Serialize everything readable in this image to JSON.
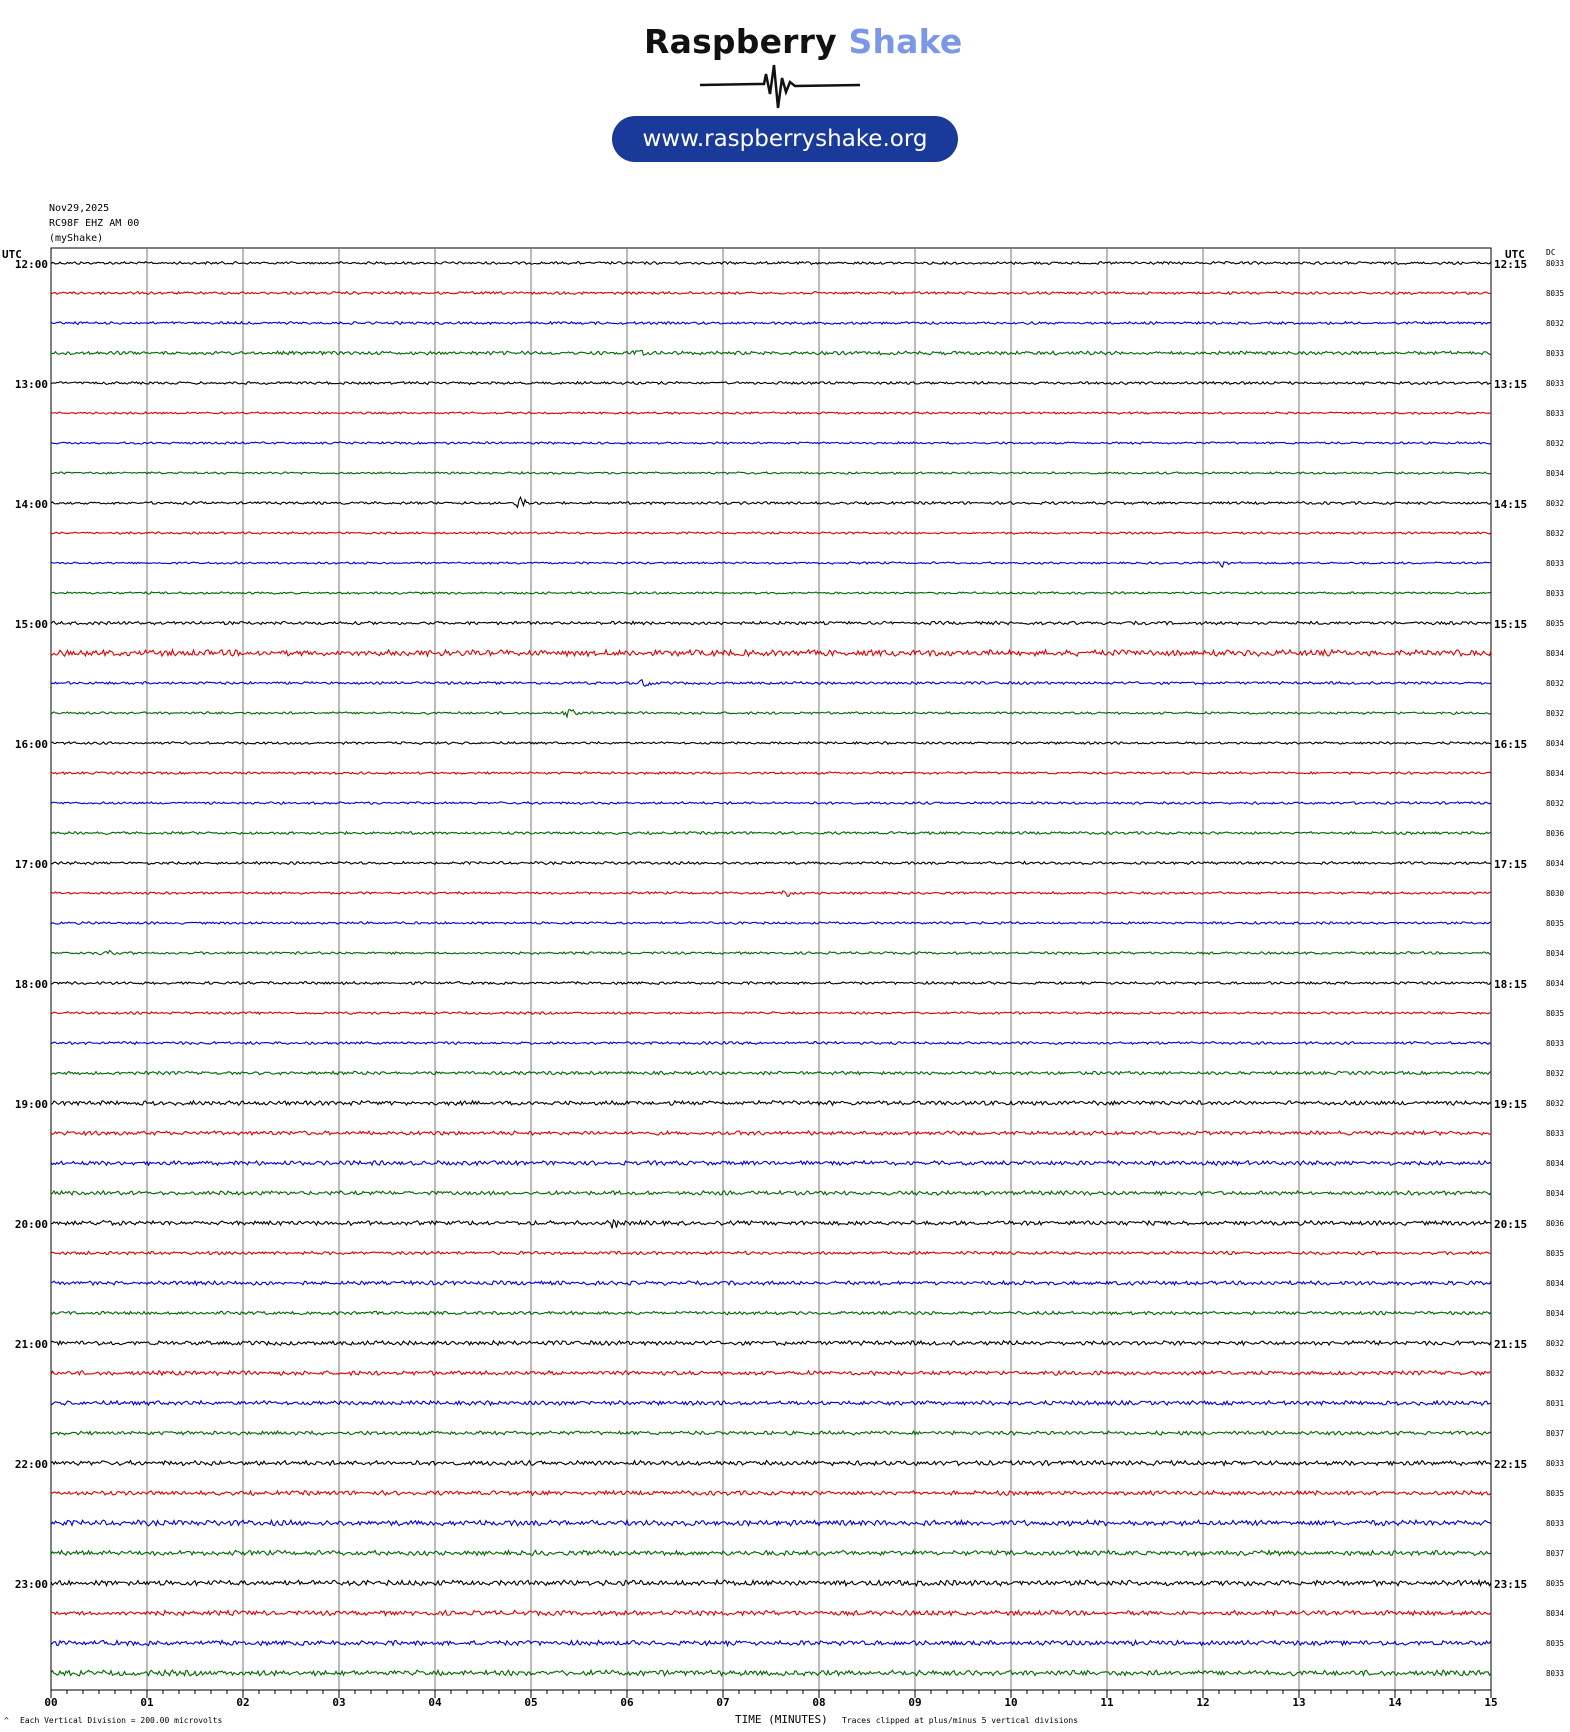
{
  "logo": {
    "brand_part1": "Raspberry",
    "brand_part2": "Shake",
    "url": "www.raspberryshake.org",
    "colors": {
      "dark": "#111111",
      "accent": "#7b98e6",
      "pill": "#1a3a99"
    }
  },
  "header": {
    "date": "Nov29,2025",
    "station": "RC98F EHZ AM 00",
    "source": "(myShake)"
  },
  "axes": {
    "left_title": "UTC",
    "right_title": "UTC",
    "dc_title": "DC",
    "left_hour_labels": [
      "12:00",
      "13:00",
      "14:00",
      "15:00",
      "16:00",
      "17:00",
      "18:00",
      "19:00",
      "20:00",
      "21:00",
      "22:00",
      "23:00"
    ],
    "right_hour_labels": [
      "12:15",
      "13:15",
      "14:15",
      "15:15",
      "16:15",
      "17:15",
      "18:15",
      "19:15",
      "20:15",
      "21:15",
      "22:15",
      "23:15"
    ],
    "x_ticks": [
      "00",
      "01",
      "02",
      "03",
      "04",
      "05",
      "06",
      "07",
      "08",
      "09",
      "10",
      "11",
      "12",
      "13",
      "14",
      "15"
    ],
    "x_title": "TIME (MINUTES)"
  },
  "footer": {
    "scale_note": "Each Vertical Division =  200.00 microvolts",
    "clip_note": "Traces clipped at plus/minus 5 vertical divisions"
  },
  "chart_data": {
    "type": "line",
    "subtype": "helicorder",
    "xlabel": "TIME (MINUTES)",
    "xlim": [
      0,
      15
    ],
    "trace_minutes": 15,
    "colors": [
      "#000000",
      "#dd0000",
      "#0000dd",
      "#006600"
    ],
    "dc_offsets": [
      "8033",
      "8035",
      "8032",
      "8033",
      "8033",
      "8033",
      "8032",
      "8034",
      "8032",
      "8032",
      "8033",
      "8033",
      "8035",
      "8034",
      "8032",
      "8032",
      "8034",
      "8034",
      "8032",
      "8036",
      "8034",
      "8030",
      "8035",
      "8034",
      "8034",
      "8035",
      "8033",
      "8032",
      "8032",
      "8033",
      "8034",
      "8034",
      "8036",
      "8035",
      "8034",
      "8034",
      "8032",
      "8032",
      "8031",
      "8037",
      "8033",
      "8035",
      "8033",
      "8037",
      "8035",
      "8034",
      "8035",
      "8033"
    ],
    "trace_noise_levels": [
      1.0,
      1.0,
      1.0,
      1.3,
      1.0,
      0.8,
      0.8,
      0.8,
      1.0,
      0.8,
      0.8,
      0.8,
      1.2,
      2.2,
      1.0,
      0.9,
      0.9,
      0.9,
      0.9,
      1.0,
      1.0,
      0.9,
      0.9,
      0.9,
      1.0,
      0.9,
      1.0,
      1.2,
      1.6,
      1.5,
      1.6,
      1.5,
      1.6,
      1.2,
      1.5,
      1.2,
      1.6,
      1.6,
      1.6,
      1.4,
      1.7,
      1.6,
      2.0,
      1.8,
      2.0,
      1.8,
      1.8,
      2.0
    ],
    "events": [
      {
        "trace": 3,
        "minute": 6.1,
        "amplitude": 6
      },
      {
        "trace": 8,
        "minute": 4.9,
        "amplitude": 7
      },
      {
        "trace": 10,
        "minute": 12.2,
        "amplitude": 4
      },
      {
        "trace": 14,
        "minute": 6.2,
        "amplitude": 5
      },
      {
        "trace": 15,
        "minute": 5.4,
        "amplitude": 5
      },
      {
        "trace": 21,
        "minute": 7.65,
        "amplitude": 7
      },
      {
        "trace": 23,
        "minute": 0.6,
        "amplitude": 4
      },
      {
        "trace": 32,
        "minute": 5.85,
        "amplitude": 5
      },
      {
        "trace": 32,
        "minute": 0.5,
        "amplitude": 4
      }
    ]
  }
}
